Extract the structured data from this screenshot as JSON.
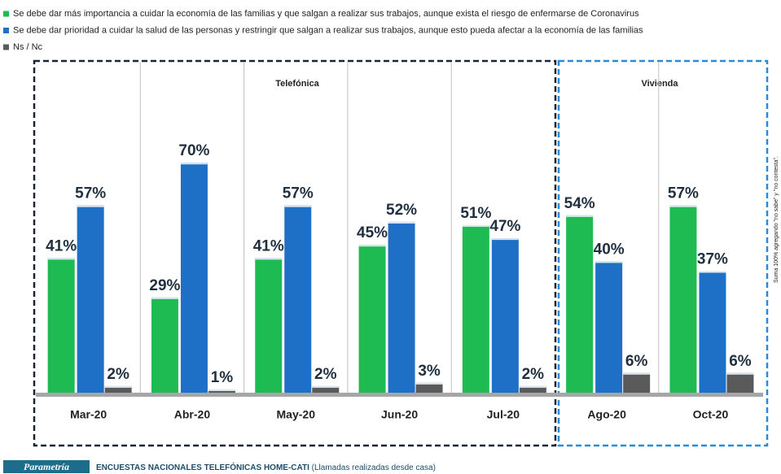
{
  "chart_data": {
    "type": "bar",
    "categories": [
      "Mar-20",
      "Abr-20",
      "May-20",
      "Jun-20",
      "Jul-20",
      "Ago-20",
      "Oct-20"
    ],
    "series": [
      {
        "name": "Se debe dar más importancia a cuidar la economía de las familias y que salgan a realizar sus trabajos, aunque exista el riesgo de enfermarse de Coronavirus",
        "color": "#1dbb52",
        "values": [
          41,
          29,
          41,
          45,
          51,
          54,
          57
        ],
        "value_labels": [
          "41%",
          "29%",
          "41%",
          "45%",
          "51%",
          "54%",
          "57%"
        ]
      },
      {
        "name": "Se debe dar prioridad a cuidar la salud de las personas y restringir que salgan a realizar sus trabajos, aunque esto pueda afectar a la economía de las familias",
        "color": "#1e6fc6",
        "values": [
          57,
          70,
          57,
          52,
          47,
          40,
          37
        ],
        "value_labels": [
          "57%",
          "70%",
          "57%",
          "52%",
          "47%",
          "40%",
          "37%"
        ]
      },
      {
        "name": "Ns / Nc",
        "color": "#5a5a5a",
        "values": [
          2,
          1,
          2,
          3,
          2,
          6,
          6
        ],
        "value_labels": [
          "2%",
          "1%",
          "2%",
          "3%",
          "2%",
          "6%",
          "6%"
        ]
      }
    ],
    "ylim": [
      0,
      100
    ],
    "annotations": [
      "Telefónica",
      "Vivienda",
      "Suma 100% agregando \"no sabe\" y \"no contesta\"."
    ]
  },
  "footer": {
    "brand": "Parametría",
    "text": "ENCUESTAS NACIONALES TELEFÓNICAS HOME-CATI",
    "note": "(Llamadas realizadas desde casa)"
  }
}
